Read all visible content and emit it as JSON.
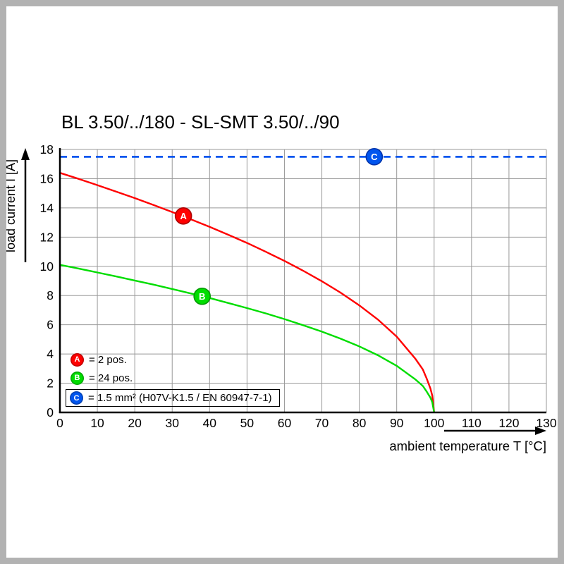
{
  "page": {
    "frame_color": "#b2b2b2",
    "background": "#ffffff"
  },
  "chart_data": {
    "type": "line",
    "title": "BL 3.50/../180 - SL-SMT 3.50/../90",
    "xlabel": "ambient temperature T [°C]",
    "ylabel": "load current I [A]",
    "xlim": [
      0,
      130
    ],
    "ylim": [
      0,
      18
    ],
    "xticks": [
      0,
      10,
      20,
      30,
      40,
      50,
      60,
      70,
      80,
      90,
      100,
      110,
      120,
      130
    ],
    "yticks": [
      0,
      2,
      4,
      6,
      8,
      10,
      12,
      14,
      16,
      18
    ],
    "grid": true,
    "grid_color": "#999999",
    "axis_color": "#000000",
    "series": [
      {
        "name": "A",
        "label": "2 pos.",
        "color": "#ff0000",
        "style": "solid",
        "points": [
          [
            0,
            16.4
          ],
          [
            5,
            15.99
          ],
          [
            10,
            15.56
          ],
          [
            15,
            15.12
          ],
          [
            20,
            14.67
          ],
          [
            25,
            14.2
          ],
          [
            30,
            13.72
          ],
          [
            35,
            13.22
          ],
          [
            40,
            12.7
          ],
          [
            45,
            12.16
          ],
          [
            50,
            11.6
          ],
          [
            55,
            11.0
          ],
          [
            60,
            10.37
          ],
          [
            65,
            9.7
          ],
          [
            70,
            8.98
          ],
          [
            75,
            8.2
          ],
          [
            80,
            7.33
          ],
          [
            85,
            6.35
          ],
          [
            90,
            5.19
          ],
          [
            95,
            3.67
          ],
          [
            97,
            2.94
          ],
          [
            98,
            2.32
          ],
          [
            99,
            1.64
          ],
          [
            99.5,
            1.16
          ],
          [
            100,
            0
          ]
        ]
      },
      {
        "name": "B",
        "label": "24 pos.",
        "color": "#00dd00",
        "style": "solid",
        "points": [
          [
            0,
            10.1
          ],
          [
            5,
            9.85
          ],
          [
            10,
            9.58
          ],
          [
            15,
            9.31
          ],
          [
            20,
            9.03
          ],
          [
            25,
            8.75
          ],
          [
            30,
            8.45
          ],
          [
            35,
            8.14
          ],
          [
            40,
            7.83
          ],
          [
            45,
            7.49
          ],
          [
            50,
            7.14
          ],
          [
            55,
            6.78
          ],
          [
            60,
            6.39
          ],
          [
            65,
            5.97
          ],
          [
            70,
            5.53
          ],
          [
            75,
            5.05
          ],
          [
            80,
            4.52
          ],
          [
            85,
            3.91
          ],
          [
            90,
            3.19
          ],
          [
            95,
            2.26
          ],
          [
            97,
            1.81
          ],
          [
            98,
            1.43
          ],
          [
            99,
            1.01
          ],
          [
            99.5,
            0.71
          ],
          [
            100,
            0
          ]
        ]
      },
      {
        "name": "C",
        "label": "1.5 mm² (H07V-K1.5 / EN 60947-7-1)",
        "color": "#0055ee",
        "style": "dashed",
        "points": [
          [
            0,
            17.5
          ],
          [
            130,
            17.5
          ]
        ]
      }
    ],
    "markers": [
      {
        "label": "A",
        "x": 33,
        "y": 13.45,
        "fill": "#ff0000",
        "stroke": "#aa0000"
      },
      {
        "label": "B",
        "x": 38,
        "y": 7.95,
        "fill": "#00dd00",
        "stroke": "#009900"
      },
      {
        "label": "C",
        "x": 84,
        "y": 17.5,
        "fill": "#0055ee",
        "stroke": "#0033aa"
      }
    ],
    "legend": {
      "position": "bottom-left-inside",
      "entries": [
        {
          "key": "A",
          "text": "= 2 pos.",
          "color": "#ff0000",
          "boxed": false
        },
        {
          "key": "B",
          "text": "= 24 pos.",
          "color": "#00dd00",
          "boxed": false
        },
        {
          "key": "C",
          "text": "= 1.5 mm² (H07V-K1.5 / EN 60947-7-1)",
          "color": "#0055ee",
          "boxed": true
        }
      ]
    }
  }
}
